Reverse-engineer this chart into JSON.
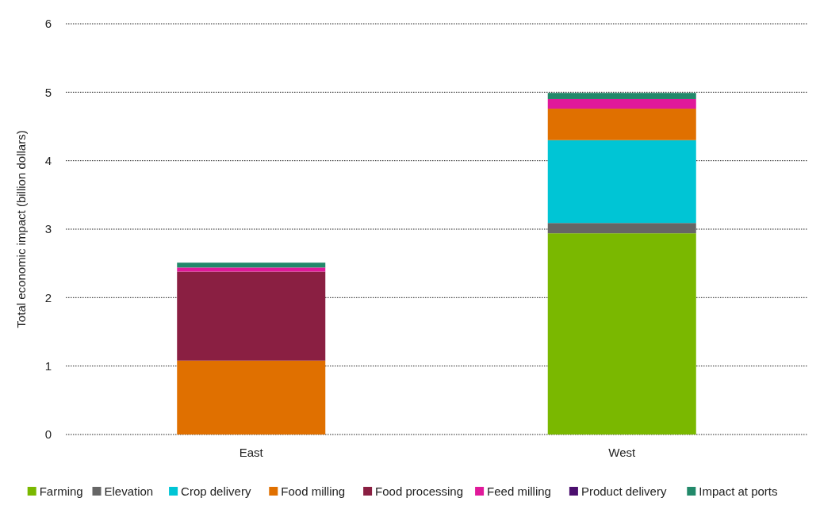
{
  "chart_data": {
    "type": "bar",
    "stacked": true,
    "ylabel": "Total economic impact (billion dollars)",
    "categories": [
      "East",
      "West"
    ],
    "series": [
      {
        "name": "Farming",
        "color": "#7ab800",
        "values": [
          0,
          2.94
        ]
      },
      {
        "name": "Elevation",
        "color": "#666666",
        "values": [
          0,
          0.15
        ]
      },
      {
        "name": "Crop delivery",
        "color": "#00c5d5",
        "values": [
          0,
          1.21
        ]
      },
      {
        "name": "Food milling",
        "color": "#e07000",
        "values": [
          1.08,
          0.46
        ]
      },
      {
        "name": "Food processing",
        "color": "#8a1f42",
        "values": [
          1.3,
          0
        ]
      },
      {
        "name": "Feed milling",
        "color": "#e0199a",
        "values": [
          0.06,
          0.14
        ]
      },
      {
        "name": "Product delivery",
        "color": "#4b0f6e",
        "values": [
          0,
          0
        ]
      },
      {
        "name": "Impact at ports",
        "color": "#22896a",
        "values": [
          0.07,
          0.09
        ]
      }
    ],
    "ylim": [
      0,
      6
    ],
    "yticks": [
      0,
      1,
      2,
      3,
      4,
      5,
      6
    ],
    "grid": "y",
    "legend": "bottom"
  }
}
